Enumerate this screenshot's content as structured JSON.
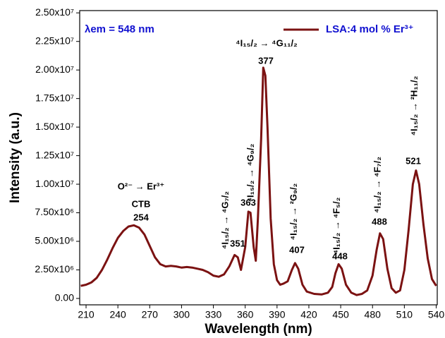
{
  "chart_data": {
    "type": "line",
    "x_label": "Wavelength (nm)",
    "y_label": "Intensity (a.u.)",
    "xlim": [
      204,
      541
    ],
    "ylim": [
      -560000,
      25200000
    ],
    "xticks": [
      210,
      240,
      270,
      300,
      330,
      360,
      390,
      420,
      450,
      480,
      510,
      540
    ],
    "yticks": [
      {
        "value": 0,
        "label": "0.00"
      },
      {
        "value": 2500000,
        "label": "2.50x10⁶"
      },
      {
        "value": 5000000,
        "label": "5.00x10⁶"
      },
      {
        "value": 7500000,
        "label": "7.50x10⁶"
      },
      {
        "value": 10000000,
        "label": "1.00x10⁷"
      },
      {
        "value": 12500000,
        "label": "1.25x10⁷"
      },
      {
        "value": 15000000,
        "label": "1.50x10⁷"
      },
      {
        "value": 17500000,
        "label": "1.75x10⁷"
      },
      {
        "value": 20000000,
        "label": "2.00x10⁷"
      },
      {
        "value": 22500000,
        "label": "2.25x10⁷"
      },
      {
        "value": 25000000,
        "label": "2.50x10⁷"
      }
    ],
    "legend": "top-right",
    "x": [
      205,
      210,
      215,
      220,
      225,
      230,
      235,
      240,
      245,
      250,
      255,
      260,
      265,
      270,
      275,
      280,
      285,
      290,
      295,
      300,
      305,
      310,
      315,
      320,
      325,
      330,
      335,
      340,
      345,
      350,
      353,
      356,
      360,
      363,
      365,
      368,
      370,
      372,
      375,
      377,
      379,
      381,
      384,
      387,
      390,
      393,
      396,
      400,
      404,
      407,
      410,
      414,
      418,
      425,
      432,
      438,
      442,
      445,
      448,
      451,
      455,
      460,
      465,
      470,
      475,
      480,
      484,
      487,
      490,
      494,
      498,
      502,
      506,
      510,
      514,
      518,
      521,
      524,
      528,
      532,
      536,
      540
    ],
    "series": [
      {
        "name": "LSA:4 mol % Er³⁺",
        "color": "#7b1212",
        "values": [
          1100000,
          1200000,
          1400000,
          1800000,
          2500000,
          3400000,
          4400000,
          5300000,
          5900000,
          6300000,
          6400000,
          6200000,
          5600000,
          4600000,
          3600000,
          3000000,
          2800000,
          2850000,
          2800000,
          2700000,
          2750000,
          2700000,
          2600000,
          2500000,
          2300000,
          2000000,
          1900000,
          2100000,
          2800000,
          3800000,
          3600000,
          2500000,
          4500000,
          7600000,
          7500000,
          4500000,
          3300000,
          7000000,
          14000000,
          20200000,
          19500000,
          15000000,
          7000000,
          3000000,
          1600000,
          1200000,
          1300000,
          1500000,
          2500000,
          3100000,
          2600000,
          1200000,
          600000,
          400000,
          350000,
          500000,
          1000000,
          2200000,
          3000000,
          2600000,
          1200000,
          500000,
          300000,
          400000,
          700000,
          2000000,
          4300000,
          5700000,
          5200000,
          2600000,
          900000,
          500000,
          700000,
          2500000,
          6000000,
          10000000,
          11200000,
          10000000,
          6500000,
          3500000,
          1700000,
          1100000
        ]
      }
    ],
    "annotations": [
      "λem = 548 nm",
      "O²⁻ → Er³⁺",
      "CTB",
      "254",
      "351",
      "363",
      "377",
      "407",
      "448",
      "488",
      "521",
      "⁴I₁₅/₂ → ⁴G₇/₂",
      "⁴I₁₅/₂ → ⁴G₉/₂",
      "⁴I₁₅/₂ → ⁴G₁₁/₂",
      "⁴I₁₅/₂ → ²G₉/₂",
      "⁴I₁₅/₂ → ⁴F₅/₂",
      "⁴I₁₅/₂ → ⁴F₇/₂",
      "⁴I₁₅/₂ → ²H₁₁/₂"
    ]
  }
}
